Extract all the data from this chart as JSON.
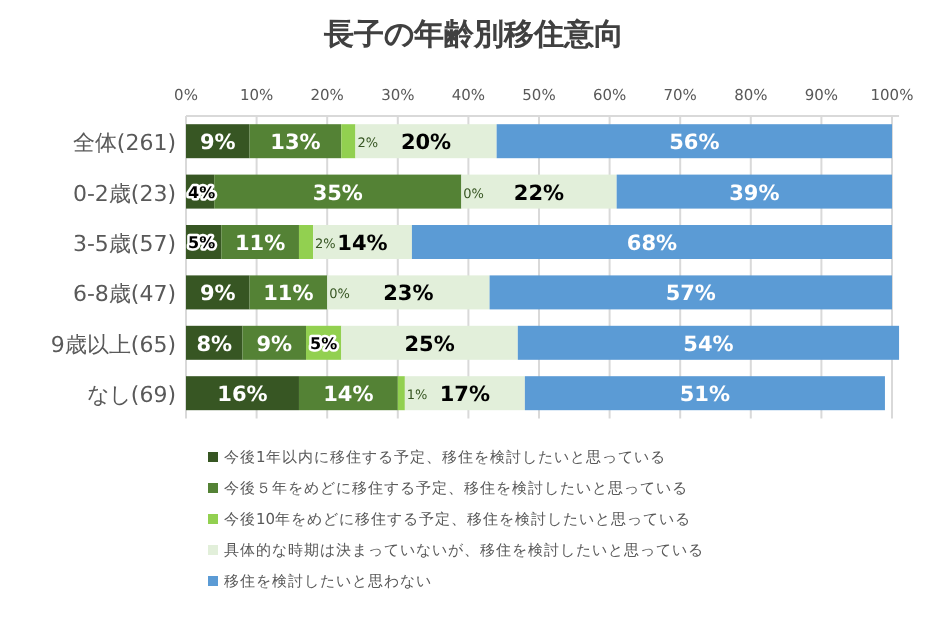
{
  "chart_data": {
    "type": "bar",
    "orientation": "horizontal",
    "stacked": true,
    "title": "長子の年齢別移住意向",
    "categories": [
      "全体(261)",
      "0-2歳(23)",
      "3-5歳(57)",
      "6-8歳(47)",
      "9歳以上(65)",
      "なし(69)"
    ],
    "series": [
      {
        "name": "今後1年以内に移住する予定、移住を検討したいと思っている",
        "color": "#375623",
        "values": [
          9,
          4,
          5,
          9,
          8,
          16
        ]
      },
      {
        "name": "今後５年をめどに移住する予定、移住を検討したいと思っている",
        "color": "#548235",
        "values": [
          13,
          35,
          11,
          11,
          9,
          14
        ]
      },
      {
        "name": "今後10年をめどに移住する予定、移住を検討したいと思っている",
        "color": "#92d050",
        "values": [
          2,
          0,
          2,
          0,
          5,
          1
        ]
      },
      {
        "name": "具体的な時期は決まっていないが、移住を検討したいと思っている",
        "color": "#e2efda",
        "values": [
          20,
          22,
          14,
          23,
          25,
          17
        ]
      },
      {
        "name": "移住を検討したいと思わない",
        "color": "#5b9bd5",
        "values": [
          56,
          39,
          68,
          57,
          54,
          51
        ]
      }
    ],
    "xlim": [
      0,
      101
    ],
    "xticks": [
      {
        "value": 0,
        "label": "0%"
      },
      {
        "value": 10,
        "label": "10%"
      },
      {
        "value": 20,
        "label": "20%"
      },
      {
        "value": 30,
        "label": "30%"
      },
      {
        "value": 40,
        "label": "40%"
      },
      {
        "value": 50,
        "label": "50%"
      },
      {
        "value": 60,
        "label": "60%"
      },
      {
        "value": 70,
        "label": "70%"
      },
      {
        "value": 80,
        "label": "80%"
      },
      {
        "value": 90,
        "label": "90%"
      },
      {
        "value": 100,
        "label": "100%"
      }
    ],
    "value_labels": [
      [
        "9%",
        "13%",
        "2%",
        "20%",
        "56%"
      ],
      [
        "4%",
        "35%",
        "0%",
        "22%",
        "39%"
      ],
      [
        "5%",
        "11%",
        "2%",
        "14%",
        "68%"
      ],
      [
        "9%",
        "11%",
        "0%",
        "23%",
        "57%"
      ],
      [
        "8%",
        "9%",
        "5%",
        "25%",
        "54%"
      ],
      [
        "16%",
        "14%",
        "1%",
        "17%",
        "51%"
      ]
    ],
    "grid": "x",
    "legend": "bottom"
  }
}
